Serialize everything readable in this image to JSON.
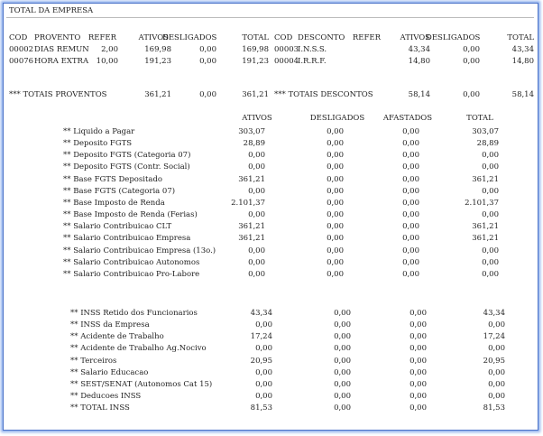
{
  "report_title": "TOTAL DA EMPRESA",
  "top_headers": {
    "cod": "COD",
    "provento": "PROVENTO",
    "refer": "REFER",
    "ativos": "ATIVOS",
    "desligados": "DESLIGADOS",
    "total": "TOTAL",
    "cod2": "COD",
    "desconto": "DESCONTO",
    "refer2": "REFER",
    "ativos2": "ATIVOS",
    "desligados2": "DESLIGADOS",
    "total2": "TOTAL"
  },
  "entries": [
    {
      "cod": "00002",
      "desc": "DIAS REMUN",
      "refer": "2,00",
      "ativos": "169,98",
      "desligados": "0,00",
      "total": "169,98",
      "cod2": "00003",
      "desc2": "I.N.S.S.",
      "ativos2": "43,34",
      "desligados2": "0,00",
      "total2": "43,34"
    },
    {
      "cod": "00076",
      "desc": "HORA EXTRA",
      "refer": "10,00",
      "ativos": "191,23",
      "desligados": "0,00",
      "total": "191,23",
      "cod2": "00004",
      "desc2": "I.R.R.F.",
      "ativos2": "14,80",
      "desligados2": "0,00",
      "total2": "14,80"
    }
  ],
  "totals_row": {
    "label": "*** TOTAIS PROVENTOS",
    "ativos": "361,21",
    "desligados": "0,00",
    "total": "361,21",
    "label2": "*** TOTAIS DESCONTOS",
    "ativos2": "58,14",
    "desligados2": "0,00",
    "total2": "58,14"
  },
  "summary_headers": {
    "ativos": "ATIVOS",
    "desligados": "DESLIGADOS",
    "afastados": "AFASTADOS",
    "total": "TOTAL"
  },
  "summary_rows": [
    {
      "label": "** Liquido a Pagar",
      "ativos": "303,07",
      "desligados": "0,00",
      "afastados": "0,00",
      "total": "303,07"
    },
    {
      "label": "** Deposito FGTS",
      "ativos": "28,89",
      "desligados": "0,00",
      "afastados": "0,00",
      "total": "28,89"
    },
    {
      "label": "** Deposito FGTS (Categoria 07)",
      "ativos": "0,00",
      "desligados": "0,00",
      "afastados": "0,00",
      "total": "0,00"
    },
    {
      "label": "** Deposito FGTS (Contr. Social)",
      "ativos": "0,00",
      "desligados": "0,00",
      "afastados": "0,00",
      "total": "0,00"
    },
    {
      "label": "** Base FGTS Depositado",
      "ativos": "361,21",
      "desligados": "0,00",
      "afastados": "0,00",
      "total": "361,21"
    },
    {
      "label": "** Base FGTS (Categoria 07)",
      "ativos": "0,00",
      "desligados": "0,00",
      "afastados": "0,00",
      "total": "0,00"
    },
    {
      "label": "** Base Imposto de Renda",
      "ativos": "2.101,37",
      "desligados": "0,00",
      "afastados": "0,00",
      "total": "2.101,37"
    },
    {
      "label": "** Base Imposto de Renda (Ferias)",
      "ativos": "0,00",
      "desligados": "0,00",
      "afastados": "0,00",
      "total": "0,00"
    },
    {
      "label": "** Salario Contribuicao CLT",
      "ativos": "361,21",
      "desligados": "0,00",
      "afastados": "0,00",
      "total": "361,21"
    },
    {
      "label": "** Salario Contribuicao Empresa",
      "ativos": "361,21",
      "desligados": "0,00",
      "afastados": "0,00",
      "total": "361,21"
    },
    {
      "label": "** Salario Contribuicao Empresa (13o.)",
      "ativos": "0,00",
      "desligados": "0,00",
      "afastados": "0,00",
      "total": "0,00"
    },
    {
      "label": "** Salario Contribuicao Autonomos",
      "ativos": "0,00",
      "desligados": "0,00",
      "afastados": "0,00",
      "total": "0,00"
    },
    {
      "label": "** Salario Contribuicao Pro-Labore",
      "ativos": "0,00",
      "desligados": "0,00",
      "afastados": "0,00",
      "total": "0,00"
    }
  ],
  "inss_rows": [
    {
      "label": "** INSS Retido dos Funcionarios",
      "ativos": "43,34",
      "desligados": "0,00",
      "afastados": "0,00",
      "total": "43,34"
    },
    {
      "label": "** INSS da Empresa",
      "ativos": "0,00",
      "desligados": "0,00",
      "afastados": "0,00",
      "total": "0,00"
    },
    {
      "label": "** Acidente de Trabalho",
      "ativos": "17,24",
      "desligados": "0,00",
      "afastados": "0,00",
      "total": "17,24"
    },
    {
      "label": "** Acidente de Trabalho Ag.Nocivo",
      "ativos": "0,00",
      "desligados": "0,00",
      "afastados": "0,00",
      "total": "0,00"
    },
    {
      "label": "** Terceiros",
      "ativos": "20,95",
      "desligados": "0,00",
      "afastados": "0,00",
      "total": "20,95"
    },
    {
      "label": "** Salario Educacao",
      "ativos": "0,00",
      "desligados": "0,00",
      "afastados": "0,00",
      "total": "0,00"
    },
    {
      "label": "** SEST/SENAT (Autonomos Cat 15)",
      "ativos": "0,00",
      "desligados": "0,00",
      "afastados": "0,00",
      "total": "0,00"
    },
    {
      "label": "** Deducoes INSS",
      "ativos": "0,00",
      "desligados": "0,00",
      "afastados": "0,00",
      "total": "0,00"
    },
    {
      "label": "** TOTAL INSS",
      "ativos": "81,53",
      "desligados": "0,00",
      "afastados": "0,00",
      "total": "81,53"
    }
  ]
}
